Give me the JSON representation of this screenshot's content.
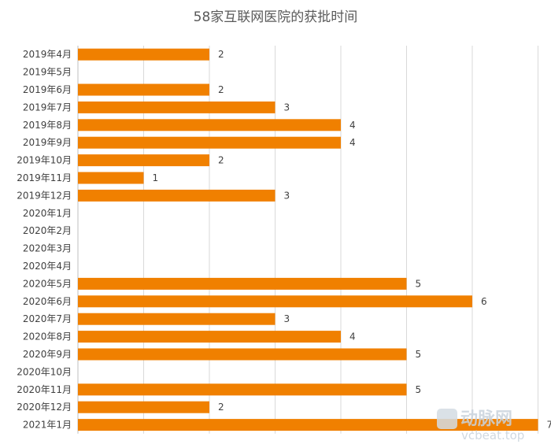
{
  "chart_data": {
    "type": "bar",
    "orientation": "horizontal",
    "title": "58家互联网医院的获批时间",
    "categories": [
      "2019年4月",
      "2019年5月",
      "2019年6月",
      "2019年7月",
      "2019年8月",
      "2019年9月",
      "2019年10月",
      "2019年11月",
      "2019年12月",
      "2020年1月",
      "2020年2月",
      "2020年3月",
      "2020年4月",
      "2020年5月",
      "2020年6月",
      "2020年7月",
      "2020年8月",
      "2020年9月",
      "2020年10月",
      "2020年11月",
      "2020年12月",
      "2021年1月"
    ],
    "values": [
      2,
      null,
      2,
      3,
      4,
      4,
      2,
      1,
      3,
      null,
      null,
      null,
      null,
      5,
      6,
      3,
      4,
      5,
      null,
      5,
      2,
      7
    ],
    "xlim": [
      0,
      7
    ],
    "grid": true,
    "bar_color": "#f08000"
  },
  "watermark": {
    "logo_text": "动脉网",
    "site_text": "vcbeat.top"
  }
}
